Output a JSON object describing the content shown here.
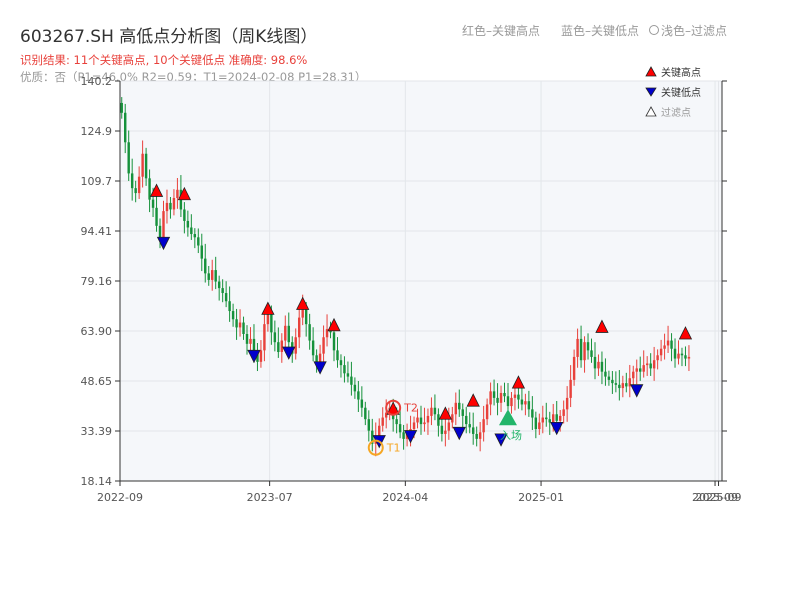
{
  "header": {
    "title": "603267.SH 高低点分析图（周K线图）",
    "result_line": "识别结果: 11个关键高点, 10个关键低点   准确度: 98.6%",
    "quality_line": "优质：否（P1=46.0%  R2=0.59；T1=2024-02-08 P1=28.31）",
    "legend_high": "红色–关键高点",
    "legend_low": "蓝色–关键低点",
    "legend_filter": "浅色–过滤点"
  },
  "colors": {
    "up": "#e8413b",
    "down": "#16913b",
    "high_marker": "#ff0000",
    "low_marker": "#0000cc",
    "plot_bg": "#f5f7fa",
    "t1": "#f5a623",
    "t2": "#e8413b",
    "entry": "#23b56a"
  },
  "chart_data": {
    "type": "candlestick",
    "title": "603267.SH 高低点分析图（周K线图）",
    "y_ticks": [
      "18.14",
      "33.39",
      "48.65",
      "63.90",
      "79.16",
      "94.41",
      "109.7",
      "124.9",
      "140.2"
    ],
    "ylim": [
      18.14,
      140.2
    ],
    "x_ticks": [
      {
        "week": 0,
        "label": "2022-09"
      },
      {
        "week": 43,
        "label": "2023-07"
      },
      {
        "week": 82,
        "label": "2024-04"
      },
      {
        "week": 121,
        "label": "2025-01"
      },
      {
        "week": 171,
        "label": "2025-09"
      },
      {
        "week": 172,
        "label": "2025-09"
      }
    ],
    "weeks_total": 173,
    "grid": true,
    "closes": [
      130.5,
      121.5,
      112.0,
      107.5,
      106.0,
      111.0,
      118.0,
      110.5,
      104.0,
      101.5,
      96.0,
      92.5,
      100.5,
      103.0,
      101.0,
      104.5,
      107.0,
      101.0,
      97.5,
      95.5,
      93.5,
      92.5,
      90.0,
      86.0,
      81.5,
      79.5,
      82.5,
      79.0,
      77.0,
      75.5,
      73.0,
      70.0,
      67.5,
      65.0,
      66.5,
      63.0,
      60.0,
      61.5,
      58.0,
      54.5,
      58.0,
      66.0,
      69.0,
      63.5,
      60.5,
      57.5,
      61.0,
      65.5,
      60.5,
      57.0,
      62.0,
      68.0,
      70.5,
      66.0,
      61.0,
      56.5,
      54.5,
      57.0,
      62.0,
      64.5,
      63.5,
      58.0,
      55.0,
      53.5,
      51.0,
      50.0,
      47.5,
      45.5,
      43.0,
      40.5,
      37.0,
      33.5,
      29.5,
      31.5,
      35.0,
      37.5,
      39.0,
      40.5,
      37.0,
      35.5,
      33.0,
      31.0,
      32.5,
      34.0,
      36.0,
      37.5,
      35.5,
      36.0,
      38.0,
      40.5,
      38.5,
      35.0,
      32.5,
      33.5,
      36.0,
      38.5,
      42.0,
      40.0,
      38.0,
      35.5,
      34.5,
      32.5,
      31.0,
      33.0,
      37.0,
      41.5,
      45.5,
      43.5,
      42.0,
      45.0,
      44.0,
      41.0,
      43.5,
      44.5,
      43.0,
      41.5,
      42.5,
      40.0,
      37.5,
      34.0,
      36.0,
      37.5,
      37.0,
      36.0,
      38.5,
      36.5,
      38.0,
      40.0,
      43.5,
      49.0,
      56.0,
      61.5,
      55.0,
      60.5,
      58.0,
      56.0,
      52.5,
      54.5,
      51.5,
      50.0,
      49.0,
      48.0,
      47.5,
      46.5,
      48.0,
      47.0,
      49.5,
      51.5,
      52.5,
      51.5,
      53.5,
      54.0,
      52.5,
      55.0,
      56.5,
      58.5,
      59.5,
      61.0,
      58.5,
      55.5,
      57.0,
      56.5,
      55.5,
      56.0
    ],
    "key_highs": [
      {
        "week": 10,
        "value": 106.5
      },
      {
        "week": 18,
        "value": 105.5
      },
      {
        "week": 42,
        "value": 70.5
      },
      {
        "week": 52,
        "value": 72.0
      },
      {
        "week": 61,
        "value": 65.5
      },
      {
        "week": 78,
        "value": 40.0
      },
      {
        "week": 93,
        "value": 38.5
      },
      {
        "week": 101,
        "value": 42.5
      },
      {
        "week": 114,
        "value": 48.0
      },
      {
        "week": 138,
        "value": 65.0
      },
      {
        "week": 162,
        "value": 63.0
      }
    ],
    "key_lows": [
      {
        "week": 12,
        "value": 91.0
      },
      {
        "week": 38,
        "value": 56.5
      },
      {
        "week": 48,
        "value": 57.5
      },
      {
        "week": 57,
        "value": 53.0
      },
      {
        "week": 74,
        "value": 30.5
      },
      {
        "week": 83,
        "value": 32.0
      },
      {
        "week": 97,
        "value": 33.0
      },
      {
        "week": 109,
        "value": 31.0
      },
      {
        "week": 125,
        "value": 34.5
      },
      {
        "week": 148,
        "value": 46.0
      }
    ],
    "annotations": [
      {
        "label": "T1",
        "week": 73,
        "value": 28.31,
        "kind": "circle",
        "color": "#f5a623"
      },
      {
        "label": "T2",
        "week": 78,
        "value": 40.5,
        "kind": "circle",
        "color": "#e8413b"
      },
      {
        "label": "入场",
        "week": 111,
        "value": 37.0,
        "kind": "triangle",
        "color": "#23b56a"
      }
    ],
    "legend": [
      {
        "label": "关键高点",
        "marker": "▲",
        "color": "#ff0000"
      },
      {
        "label": "关键低点",
        "marker": "▼",
        "color": "#0000cc"
      },
      {
        "label": "过滤点",
        "marker": "△",
        "color": "#999999"
      }
    ]
  }
}
